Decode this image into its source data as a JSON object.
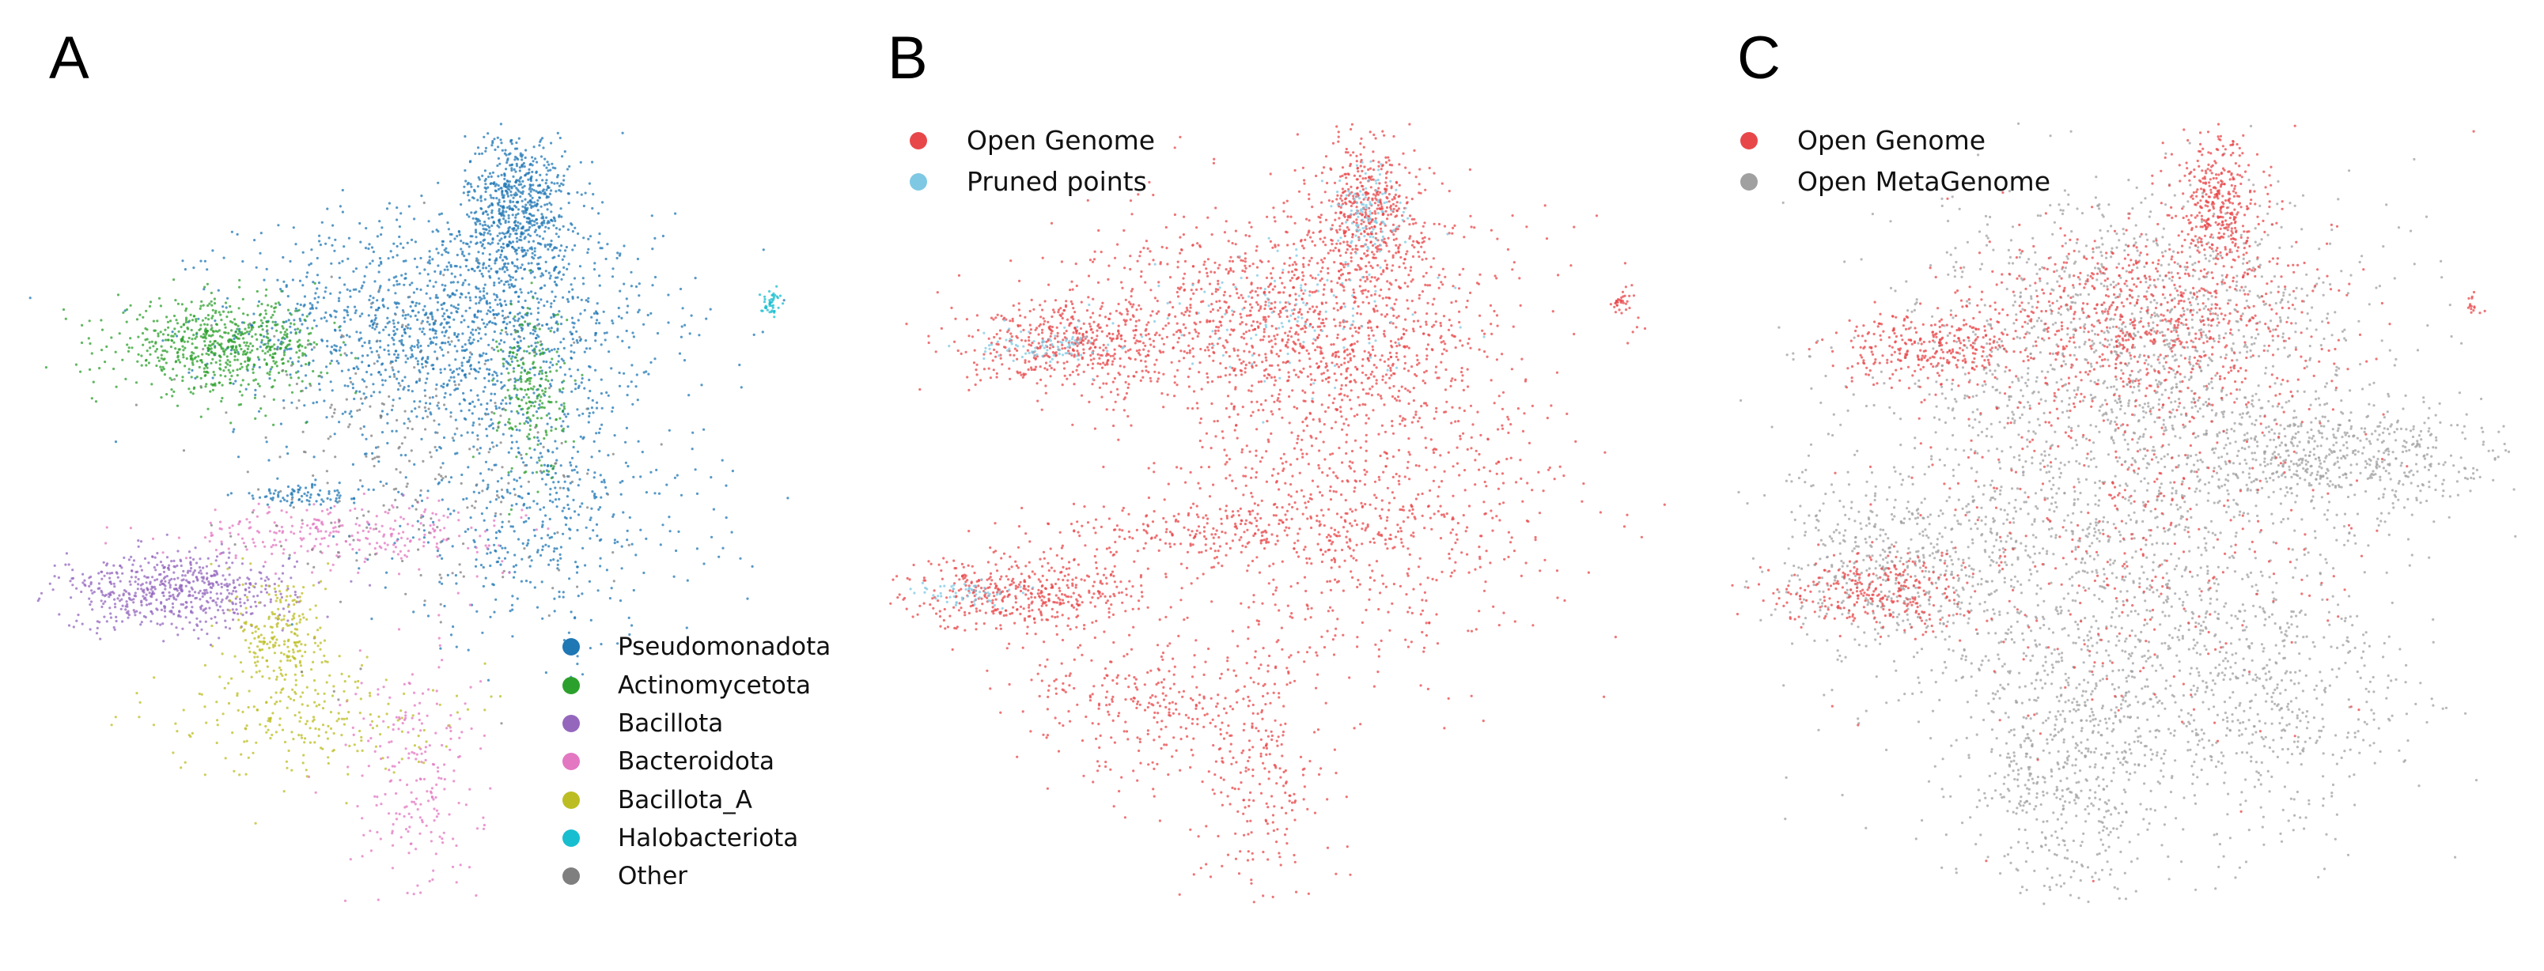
{
  "panels": [
    {
      "label": "A"
    },
    {
      "label": "B"
    },
    {
      "label": "C"
    }
  ],
  "chart_data": [
    {
      "type": "scatter",
      "panel": "A",
      "title": "",
      "xlabel": "",
      "ylabel": "",
      "axes_visible": false,
      "grid": false,
      "legend_position": "bottom-right",
      "series": [
        {
          "name": "Pseudomonadota",
          "color": "#1f77b4",
          "clusters": [
            {
              "x": 5.4,
              "y": 7.5,
              "sx": 1.4,
              "sy": 0.75,
              "weight": 1.0
            },
            {
              "x": 6.3,
              "y": 9.1,
              "sx": 0.35,
              "sy": 0.5,
              "weight": 0.45
            },
            {
              "x": 6.6,
              "y": 5.0,
              "sx": 1.1,
              "sy": 0.9,
              "weight": 0.35
            },
            {
              "x": 3.5,
              "y": 5.2,
              "sx": 0.5,
              "sy": 0.08,
              "weight": 0.06
            }
          ]
        },
        {
          "name": "Actinomycetota",
          "color": "#2ca02c",
          "clusters": [
            {
              "x": 2.3,
              "y": 7.2,
              "sx": 0.7,
              "sy": 0.3,
              "weight": 0.45
            },
            {
              "x": 6.5,
              "y": 6.6,
              "sx": 0.22,
              "sy": 0.6,
              "weight": 0.15
            }
          ]
        },
        {
          "name": "Bacillota",
          "color": "#9467bd",
          "clusters": [
            {
              "x": 1.7,
              "y": 3.9,
              "sx": 0.8,
              "sy": 0.25,
              "weight": 0.4
            }
          ]
        },
        {
          "name": "Bacteroidota",
          "color": "#e377c2",
          "clusters": [
            {
              "x": 4.0,
              "y": 4.7,
              "sx": 1.1,
              "sy": 0.2,
              "weight": 0.18
            },
            {
              "x": 4.9,
              "y": 1.4,
              "sx": 0.45,
              "sy": 0.9,
              "weight": 0.15
            }
          ]
        },
        {
          "name": "Bacillota_A",
          "color": "#bcbd22",
          "clusters": [
            {
              "x": 3.15,
              "y": 3.3,
              "sx": 0.3,
              "sy": 0.45,
              "weight": 0.15
            },
            {
              "x": 3.4,
              "y": 2.2,
              "sx": 0.9,
              "sy": 0.4,
              "weight": 0.15
            }
          ]
        },
        {
          "name": "Halobacteriota",
          "color": "#17becf",
          "clusters": [
            {
              "x": 9.7,
              "y": 7.8,
              "sx": 0.07,
              "sy": 0.09,
              "weight": 0.03
            }
          ]
        },
        {
          "name": "Other",
          "color": "#7f7f7f",
          "clusters": [
            {
              "x": 4.8,
              "y": 5.9,
              "sx": 1.3,
              "sy": 1.1,
              "weight": 0.2
            }
          ]
        }
      ]
    },
    {
      "type": "scatter",
      "panel": "B",
      "title": "",
      "xlabel": "",
      "ylabel": "",
      "axes_visible": false,
      "grid": false,
      "legend_position": "top-left",
      "series": [
        {
          "name": "Open Genome",
          "color": "#e8474a",
          "clusters": [
            {
              "x": 5.4,
              "y": 7.5,
              "sx": 1.4,
              "sy": 0.75,
              "weight": 0.9
            },
            {
              "x": 6.3,
              "y": 9.1,
              "sx": 0.35,
              "sy": 0.5,
              "weight": 0.3
            },
            {
              "x": 6.3,
              "y": 5.0,
              "sx": 1.3,
              "sy": 1.0,
              "weight": 0.5
            },
            {
              "x": 2.3,
              "y": 7.2,
              "sx": 0.7,
              "sy": 0.3,
              "weight": 0.3
            },
            {
              "x": 1.7,
              "y": 3.9,
              "sx": 0.8,
              "sy": 0.25,
              "weight": 0.3
            },
            {
              "x": 4.0,
              "y": 4.7,
              "sx": 1.1,
              "sy": 0.2,
              "weight": 0.15
            },
            {
              "x": 4.9,
              "y": 1.4,
              "sx": 0.45,
              "sy": 0.9,
              "weight": 0.15
            },
            {
              "x": 3.4,
              "y": 2.4,
              "sx": 0.9,
              "sy": 0.5,
              "weight": 0.2
            },
            {
              "x": 9.7,
              "y": 7.8,
              "sx": 0.07,
              "sy": 0.09,
              "weight": 0.02
            }
          ]
        },
        {
          "name": "Pruned points",
          "color": "#7ec8e3",
          "clusters": [
            {
              "x": 6.3,
              "y": 9.0,
              "sx": 0.2,
              "sy": 0.3,
              "weight": 0.08
            },
            {
              "x": 2.0,
              "y": 7.2,
              "sx": 0.45,
              "sy": 0.12,
              "weight": 0.06
            },
            {
              "x": 0.9,
              "y": 3.9,
              "sx": 0.35,
              "sy": 0.08,
              "weight": 0.04
            },
            {
              "x": 5.2,
              "y": 7.6,
              "sx": 1.0,
              "sy": 0.5,
              "weight": 0.08
            }
          ]
        }
      ]
    },
    {
      "type": "scatter",
      "panel": "C",
      "title": "",
      "xlabel": "",
      "ylabel": "",
      "axes_visible": false,
      "grid": false,
      "legend_position": "top-left",
      "series": [
        {
          "name": "Open MetaGenome",
          "color": "#a0a0a0",
          "clusters": [
            {
              "x": 4.8,
              "y": 5.0,
              "sx": 1.7,
              "sy": 2.0,
              "weight": 1.2
            },
            {
              "x": 7.8,
              "y": 5.7,
              "sx": 1.2,
              "sy": 0.4,
              "weight": 0.4
            },
            {
              "x": 4.3,
              "y": 1.4,
              "sx": 0.7,
              "sy": 1.0,
              "weight": 0.35
            },
            {
              "x": 2.0,
              "y": 4.2,
              "sx": 0.9,
              "sy": 0.6,
              "weight": 0.3
            },
            {
              "x": 7.0,
              "y": 2.5,
              "sx": 1.0,
              "sy": 0.8,
              "weight": 0.3
            },
            {
              "x": 5.4,
              "y": 7.6,
              "sx": 1.4,
              "sy": 0.8,
              "weight": 0.4
            }
          ]
        },
        {
          "name": "Open Genome",
          "color": "#e8474a",
          "clusters": [
            {
              "x": 5.4,
              "y": 7.6,
              "sx": 1.2,
              "sy": 0.6,
              "weight": 0.5
            },
            {
              "x": 6.3,
              "y": 9.1,
              "sx": 0.3,
              "sy": 0.45,
              "weight": 0.25
            },
            {
              "x": 2.3,
              "y": 7.2,
              "sx": 0.6,
              "sy": 0.25,
              "weight": 0.2
            },
            {
              "x": 1.7,
              "y": 3.9,
              "sx": 0.7,
              "sy": 0.25,
              "weight": 0.2
            },
            {
              "x": 5.0,
              "y": 5.0,
              "sx": 1.5,
              "sy": 1.6,
              "weight": 0.3
            },
            {
              "x": 9.7,
              "y": 7.8,
              "sx": 0.06,
              "sy": 0.08,
              "weight": 0.01
            }
          ]
        }
      ],
      "legend_order": [
        "Open Genome",
        "Open MetaGenome"
      ]
    }
  ]
}
